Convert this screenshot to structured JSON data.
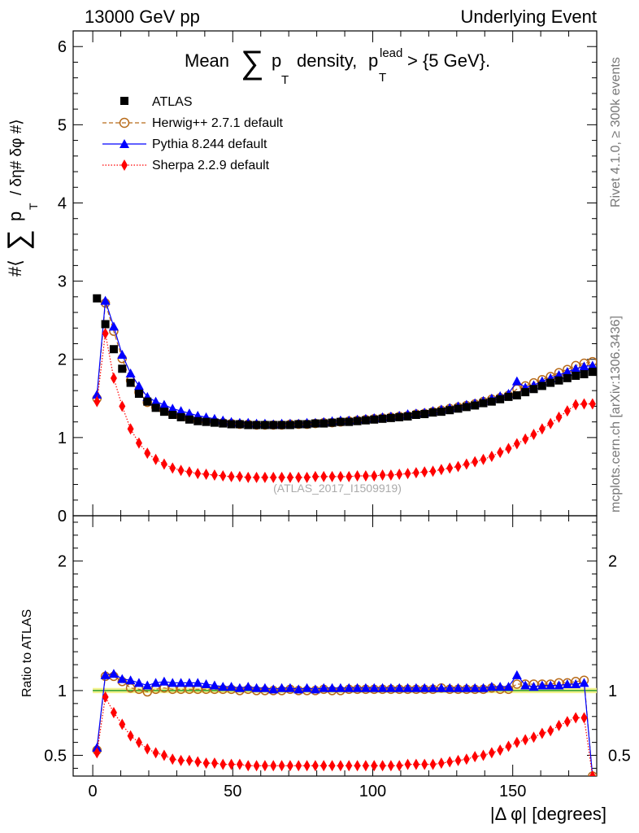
{
  "header": {
    "left": "13000 GeV pp",
    "right": "Underlying Event"
  },
  "side_labels": {
    "rivet": "Rivet 4.1.0, ≥ 300k events",
    "mcplots": "mcplots.cern.ch [arXiv:1306.3436]"
  },
  "analysis_ref": "(ATLAS_2017_I1509919)",
  "colors": {
    "atlas": "#000000",
    "herwig": "#b86b1a",
    "pythia": "#0000ff",
    "sherpa": "#ff0000",
    "band": "#f2f28c",
    "refline": "#2e9e2e"
  },
  "chart_data": [
    {
      "type": "line",
      "title": "Mean ∑ p_T density, p_T^lead > {5 GeV}.",
      "title_parts": {
        "mean": "Mean",
        "sum": "∑",
        "p": "p",
        "T": "T",
        "density": "density,",
        "lead": "lead",
        "cut": "> {5 GeV}."
      },
      "ylabel": "#⟨ ∑ p_T / δη# δφ #⟩",
      "ylabel_parts": {
        "open": "#⟨",
        "sum": "∑",
        "p": "p",
        "T": "T",
        "rest": "/ δη# δφ #⟩"
      },
      "xlabel": "|Δ φ| [degrees]",
      "xlim": [
        -7,
        180
      ],
      "ylim": [
        0,
        6.2
      ],
      "yticks": [
        0,
        1,
        2,
        3,
        4,
        5,
        6
      ],
      "yticklabels": [
        "0",
        "1",
        "2",
        "3",
        "4",
        "5",
        "6"
      ],
      "legend": [
        "ATLAS",
        "Herwig++ 2.7.1 default",
        "Pythia 8.244 default",
        "Sherpa 2.2.9 default"
      ],
      "legend_position": "top-left",
      "x": [
        1.5,
        4.5,
        7.5,
        10.5,
        13.5,
        16.5,
        19.5,
        22.5,
        25.5,
        28.5,
        31.5,
        34.5,
        37.5,
        40.5,
        43.5,
        46.5,
        49.5,
        52.5,
        55.5,
        58.5,
        61.5,
        64.5,
        67.5,
        70.5,
        73.5,
        76.5,
        79.5,
        82.5,
        85.5,
        88.5,
        91.5,
        94.5,
        97.5,
        100.5,
        103.5,
        106.5,
        109.5,
        112.5,
        115.5,
        118.5,
        121.5,
        124.5,
        127.5,
        130.5,
        133.5,
        136.5,
        139.5,
        142.5,
        145.5,
        148.5,
        151.5,
        154.5,
        157.5,
        160.5,
        163.5,
        166.5,
        169.5,
        172.5,
        175.5,
        178.5
      ],
      "series": [
        {
          "name": "ATLAS",
          "values": [
            2.78,
            2.45,
            2.13,
            1.88,
            1.7,
            1.56,
            1.46,
            1.38,
            1.33,
            1.29,
            1.26,
            1.23,
            1.21,
            1.2,
            1.19,
            1.18,
            1.17,
            1.17,
            1.16,
            1.16,
            1.16,
            1.16,
            1.16,
            1.16,
            1.17,
            1.17,
            1.18,
            1.18,
            1.19,
            1.2,
            1.2,
            1.21,
            1.22,
            1.23,
            1.24,
            1.25,
            1.26,
            1.27,
            1.29,
            1.3,
            1.32,
            1.33,
            1.35,
            1.37,
            1.39,
            1.41,
            1.44,
            1.46,
            1.49,
            1.52,
            1.54,
            1.58,
            1.62,
            1.66,
            1.7,
            1.73,
            1.76,
            1.79,
            1.81,
            1.84
          ]
        },
        {
          "name": "Herwig++ 2.7.1 default",
          "values": [
            1.5,
            2.72,
            2.36,
            2.01,
            1.73,
            1.58,
            1.45,
            1.39,
            1.35,
            1.3,
            1.27,
            1.24,
            1.22,
            1.21,
            1.2,
            1.19,
            1.18,
            1.17,
            1.17,
            1.16,
            1.16,
            1.16,
            1.16,
            1.17,
            1.17,
            1.17,
            1.18,
            1.19,
            1.19,
            1.2,
            1.21,
            1.22,
            1.23,
            1.24,
            1.25,
            1.26,
            1.27,
            1.28,
            1.3,
            1.31,
            1.33,
            1.35,
            1.37,
            1.39,
            1.41,
            1.43,
            1.46,
            1.49,
            1.51,
            1.54,
            1.62,
            1.66,
            1.7,
            1.74,
            1.78,
            1.83,
            1.87,
            1.92,
            1.95,
            1.97
          ]
        },
        {
          "name": "Pythia 8.244 default",
          "values": [
            1.55,
            2.75,
            2.42,
            2.06,
            1.82,
            1.66,
            1.52,
            1.46,
            1.42,
            1.37,
            1.34,
            1.31,
            1.28,
            1.26,
            1.24,
            1.22,
            1.2,
            1.19,
            1.19,
            1.18,
            1.18,
            1.17,
            1.18,
            1.18,
            1.18,
            1.19,
            1.19,
            1.2,
            1.21,
            1.22,
            1.22,
            1.23,
            1.24,
            1.25,
            1.26,
            1.27,
            1.28,
            1.3,
            1.31,
            1.32,
            1.34,
            1.36,
            1.38,
            1.4,
            1.42,
            1.44,
            1.47,
            1.5,
            1.53,
            1.56,
            1.72,
            1.64,
            1.67,
            1.72,
            1.76,
            1.8,
            1.84,
            1.88,
            1.91,
            1.92
          ]
        },
        {
          "name": "Sherpa 2.2.9 default",
          "values": [
            1.46,
            2.33,
            1.76,
            1.4,
            1.11,
            0.93,
            0.8,
            0.72,
            0.66,
            0.61,
            0.58,
            0.56,
            0.54,
            0.53,
            0.52,
            0.51,
            0.5,
            0.5,
            0.49,
            0.49,
            0.49,
            0.49,
            0.49,
            0.49,
            0.49,
            0.49,
            0.5,
            0.5,
            0.5,
            0.5,
            0.5,
            0.51,
            0.51,
            0.51,
            0.52,
            0.52,
            0.53,
            0.54,
            0.55,
            0.56,
            0.57,
            0.59,
            0.61,
            0.63,
            0.66,
            0.69,
            0.72,
            0.76,
            0.81,
            0.86,
            0.92,
            0.98,
            1.04,
            1.11,
            1.18,
            1.26,
            1.34,
            1.42,
            1.43,
            1.43
          ]
        }
      ]
    },
    {
      "type": "line",
      "title": "",
      "ylabel": "Ratio to ATLAS",
      "xlabel": "|Δ φ| [degrees]",
      "xlim": [
        -7,
        180
      ],
      "ylim": [
        0.34,
        2.35
      ],
      "yticks": [
        0.5,
        1,
        2
      ],
      "yticklabels": [
        "0.5",
        "1",
        "2"
      ],
      "xticks": [
        0,
        50,
        100,
        150
      ],
      "xticklabels": [
        "0",
        "50",
        "100",
        "150"
      ],
      "band": [
        0.98,
        1.02
      ],
      "x": [
        1.5,
        4.5,
        7.5,
        10.5,
        13.5,
        16.5,
        19.5,
        22.5,
        25.5,
        28.5,
        31.5,
        34.5,
        37.5,
        40.5,
        43.5,
        46.5,
        49.5,
        52.5,
        55.5,
        58.5,
        61.5,
        64.5,
        67.5,
        70.5,
        73.5,
        76.5,
        79.5,
        82.5,
        85.5,
        88.5,
        91.5,
        94.5,
        97.5,
        100.5,
        103.5,
        106.5,
        109.5,
        112.5,
        115.5,
        118.5,
        121.5,
        124.5,
        127.5,
        130.5,
        133.5,
        136.5,
        139.5,
        142.5,
        145.5,
        148.5,
        151.5,
        154.5,
        157.5,
        160.5,
        163.5,
        166.5,
        169.5,
        172.5,
        175.5,
        178.5
      ],
      "series": [
        {
          "name": "Herwig++ 2.7.1 default",
          "values": [
            0.54,
            1.11,
            1.11,
            1.07,
            1.02,
            1.01,
            0.99,
            1.01,
            1.02,
            1.01,
            1.01,
            1.01,
            1.01,
            1.01,
            1.01,
            1.01,
            1.01,
            1.0,
            1.01,
            1.0,
            1.0,
            1.0,
            1.0,
            1.01,
            1.0,
            1.0,
            1.0,
            1.01,
            1.0,
            1.0,
            1.01,
            1.01,
            1.01,
            1.01,
            1.01,
            1.01,
            1.01,
            1.01,
            1.01,
            1.01,
            1.01,
            1.02,
            1.01,
            1.01,
            1.01,
            1.01,
            1.01,
            1.02,
            1.01,
            1.01,
            1.05,
            1.05,
            1.05,
            1.05,
            1.05,
            1.06,
            1.06,
            1.07,
            1.08,
            0.34
          ]
        },
        {
          "name": "Pythia 8.244 default",
          "values": [
            0.56,
            1.12,
            1.13,
            1.09,
            1.08,
            1.06,
            1.04,
            1.06,
            1.07,
            1.06,
            1.06,
            1.06,
            1.06,
            1.05,
            1.04,
            1.03,
            1.03,
            1.02,
            1.03,
            1.02,
            1.02,
            1.01,
            1.02,
            1.02,
            1.01,
            1.02,
            1.01,
            1.02,
            1.02,
            1.02,
            1.02,
            1.02,
            1.02,
            1.02,
            1.02,
            1.02,
            1.02,
            1.02,
            1.02,
            1.02,
            1.02,
            1.02,
            1.02,
            1.02,
            1.02,
            1.02,
            1.02,
            1.03,
            1.03,
            1.03,
            1.12,
            1.04,
            1.03,
            1.04,
            1.04,
            1.04,
            1.05,
            1.05,
            1.06,
            0.34
          ]
        },
        {
          "name": "Sherpa 2.2.9 default",
          "values": [
            0.52,
            0.95,
            0.83,
            0.74,
            0.65,
            0.6,
            0.55,
            0.52,
            0.5,
            0.47,
            0.46,
            0.46,
            0.45,
            0.44,
            0.44,
            0.43,
            0.43,
            0.43,
            0.42,
            0.42,
            0.42,
            0.42,
            0.42,
            0.42,
            0.42,
            0.42,
            0.42,
            0.42,
            0.42,
            0.42,
            0.42,
            0.42,
            0.42,
            0.42,
            0.42,
            0.42,
            0.42,
            0.43,
            0.43,
            0.43,
            0.43,
            0.44,
            0.45,
            0.46,
            0.47,
            0.49,
            0.5,
            0.52,
            0.54,
            0.57,
            0.6,
            0.62,
            0.64,
            0.67,
            0.69,
            0.73,
            0.76,
            0.79,
            0.79,
            0.34
          ]
        }
      ]
    }
  ]
}
